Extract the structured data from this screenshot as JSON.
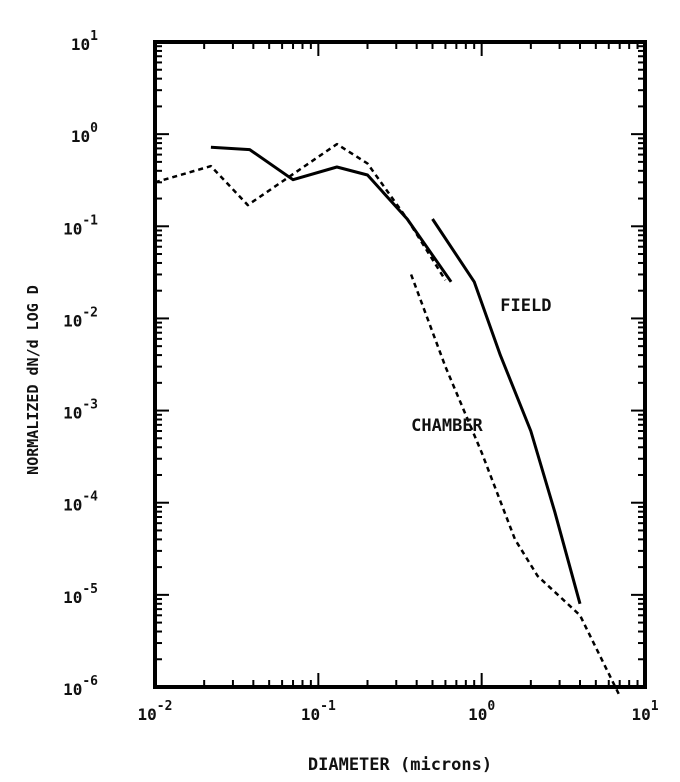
{
  "chart_data": {
    "type": "line",
    "title": "",
    "xlabel": "DIAMETER (microns)",
    "ylabel": "NORMALIZED dN/d LOG D",
    "xscale": "log",
    "yscale": "log",
    "xlim": [
      0.01,
      10
    ],
    "ylim": [
      1e-06,
      10
    ],
    "grid": false,
    "x_ticks": [
      {
        "base": "10",
        "exp": "-2",
        "value": 0.01
      },
      {
        "base": "10",
        "exp": "-1",
        "value": 0.1
      },
      {
        "base": "10",
        "exp": "0",
        "value": 1
      },
      {
        "base": "10",
        "exp": "1",
        "value": 10
      }
    ],
    "y_ticks": [
      {
        "base": "10",
        "exp": "1",
        "value": 10
      },
      {
        "base": "10",
        "exp": "0",
        "value": 1
      },
      {
        "base": "10",
        "exp": "-1",
        "value": 0.1
      },
      {
        "base": "10",
        "exp": "-2",
        "value": 0.01
      },
      {
        "base": "10",
        "exp": "-3",
        "value": 0.001
      },
      {
        "base": "10",
        "exp": "-4",
        "value": 0.0001
      },
      {
        "base": "10",
        "exp": "-5",
        "value": 1e-05
      },
      {
        "base": "10",
        "exp": "-6",
        "value": 1e-06
      }
    ],
    "series": [
      {
        "name": "FIELD",
        "style": "solid",
        "segments": [
          {
            "x": [
              0.022,
              0.038,
              0.07,
              0.13,
              0.2,
              0.35,
              0.65
            ],
            "y": [
              0.72,
              0.68,
              0.32,
              0.44,
              0.36,
              0.12,
              0.025
            ]
          },
          {
            "x": [
              0.5,
              0.9,
              1.3,
              2.0,
              2.8,
              4.0
            ],
            "y": [
              0.12,
              0.025,
              0.004,
              0.0006,
              8e-05,
              8e-06
            ]
          }
        ]
      },
      {
        "name": "CHAMBER",
        "style": "dashed",
        "segments": [
          {
            "x": [
              0.01,
              0.022,
              0.037,
              0.075,
              0.13,
              0.2,
              0.35,
              0.6
            ],
            "y": [
              0.3,
              0.45,
              0.17,
              0.4,
              0.78,
              0.48,
              0.12,
              0.026
            ]
          },
          {
            "x": [
              0.37,
              0.6,
              1.0,
              1.6,
              2.2,
              4.0,
              7.0
            ],
            "y": [
              0.03,
              0.003,
              0.00035,
              4e-05,
              1.6e-05,
              6e-06,
              8e-07
            ]
          }
        ]
      }
    ],
    "annotations": [
      {
        "text": "FIELD",
        "x": 1.3,
        "y": 0.012
      },
      {
        "text": "CHAMBER",
        "x": 0.37,
        "y": 0.0006
      }
    ]
  }
}
